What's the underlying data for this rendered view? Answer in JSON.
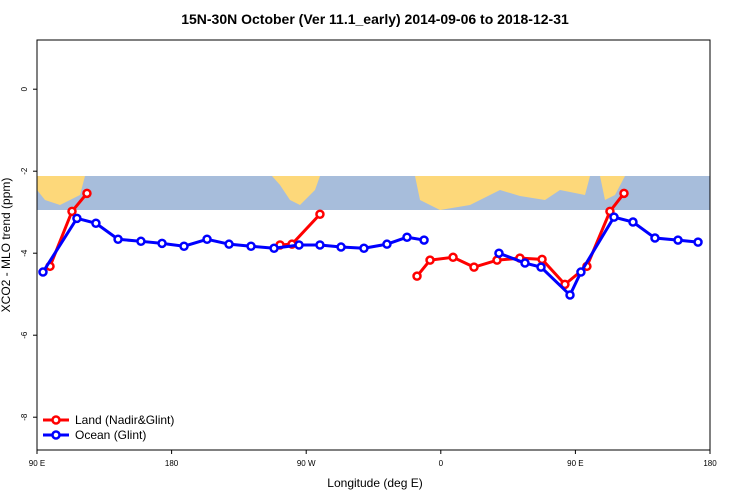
{
  "chart_data": {
    "type": "line",
    "title": "15N-30N October (Ver 11.1_early)   2014-09-06 to 2018-12-31",
    "x_label": "Longitude (deg E)",
    "y_label": "XCO2 - MLO trend (ppm)",
    "xlim": [
      90,
      540
    ],
    "ylim": [
      -8.8,
      1.2
    ],
    "xticks": [
      {
        "value": 90,
        "label": "90 E"
      },
      {
        "value": 180,
        "label": "180"
      },
      {
        "value": 270,
        "label": "90 W"
      },
      {
        "value": 360,
        "label": "0"
      },
      {
        "value": 450,
        "label": "90 E"
      },
      {
        "value": 540,
        "label": "180"
      }
    ],
    "yticks": [
      -8,
      -6,
      -4,
      -2,
      0
    ],
    "legend": "bottom-left",
    "series": [
      {
        "name": "Land (Nadir&Glint)",
        "color": "#ff0000",
        "x": [
          98.7,
          113.4,
          123.4,
          null,
          252.5,
          260.5,
          279.2,
          null,
          344.1,
          352.8,
          368.2,
          382.2,
          397.6,
          412.9,
          427.7,
          443.0,
          457.7,
          473.1,
          482.5
        ],
        "values": [
          -4.32,
          -2.98,
          -2.54,
          null,
          -3.8,
          -3.78,
          -3.05,
          null,
          -4.56,
          -4.17,
          -4.1,
          -4.34,
          -4.17,
          -4.12,
          -4.15,
          -4.76,
          -4.32,
          -2.98,
          -2.54
        ]
      },
      {
        "name": "Ocean (Glint)",
        "color": "#0000ff",
        "x": [
          94.0,
          116.7,
          129.4,
          144.2,
          159.5,
          173.6,
          188.3,
          203.7,
          218.4,
          233.1,
          248.5,
          265.2,
          279.2,
          293.3,
          308.6,
          324.0,
          337.4,
          348.8,
          null,
          398.9,
          416.3,
          427.0,
          446.4,
          453.7,
          475.8,
          488.5,
          503.2,
          518.6,
          532.0
        ],
        "values": [
          -4.46,
          -3.15,
          -3.27,
          -3.66,
          -3.71,
          -3.76,
          -3.83,
          -3.66,
          -3.78,
          -3.83,
          -3.88,
          -3.8,
          -3.8,
          -3.85,
          -3.88,
          -3.78,
          -3.61,
          -3.68,
          null,
          -4.0,
          -4.24,
          -4.34,
          -5.02,
          -4.46,
          -3.12,
          -3.24,
          -3.63,
          -3.68,
          -3.73
        ]
      }
    ]
  }
}
